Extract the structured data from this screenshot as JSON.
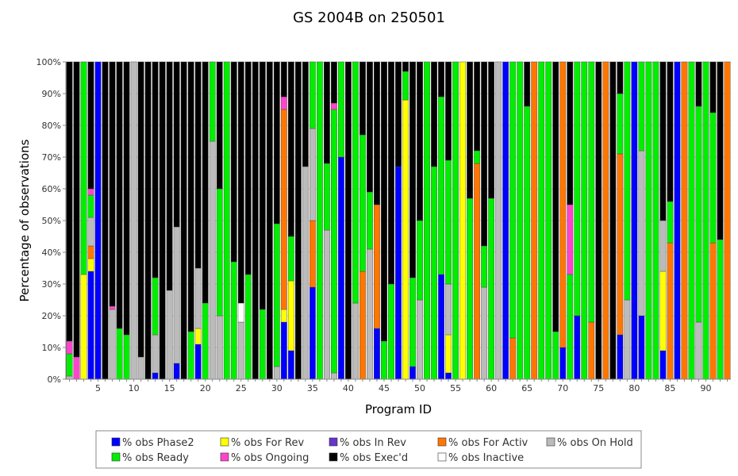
{
  "chart_data": {
    "type": "bar",
    "stacked": true,
    "title": "GS 2004B on 250501",
    "xlabel": "Program ID",
    "ylabel": "Percentage of observations",
    "ylim": [
      0,
      100
    ],
    "y_ticks": [
      "0%",
      "10%",
      "20%",
      "30%",
      "40%",
      "50%",
      "60%",
      "70%",
      "80%",
      "90%",
      "100%"
    ],
    "x_ticks": [
      5,
      10,
      15,
      20,
      25,
      30,
      35,
      40,
      45,
      50,
      55,
      60,
      65,
      70,
      75,
      80,
      85,
      90
    ],
    "program_count": 93,
    "legend_position": "bottom",
    "series": [
      {
        "key": "p2",
        "name": "% obs Phase2",
        "color": "#0000ff"
      },
      {
        "key": "fr",
        "name": "% obs For Rev",
        "color": "#ffff00"
      },
      {
        "key": "ir",
        "name": "% obs In Rev",
        "color": "#6633cc"
      },
      {
        "key": "fa",
        "name": "% obs For Activ",
        "color": "#ff7700"
      },
      {
        "key": "oh",
        "name": "% obs On Hold",
        "color": "#bbbbbb"
      },
      {
        "key": "rd",
        "name": "% obs Ready",
        "color": "#00ee00"
      },
      {
        "key": "og",
        "name": "% obs Ongoing",
        "color": "#ff44cc"
      },
      {
        "key": "ex",
        "name": "% obs Exec'd",
        "color": "#000000"
      },
      {
        "key": "in",
        "name": "% obs Inactive",
        "color": "#ffffff"
      }
    ],
    "stack_order": [
      "p2",
      "fr",
      "ir",
      "fa",
      "oh",
      "in",
      "rd",
      "og",
      "ex"
    ],
    "programs": [
      {
        "id": 1,
        "oh": 1,
        "rd": 7,
        "og": 4
      },
      {
        "id": 2,
        "og": 7
      },
      {
        "id": 3,
        "fr": 33,
        "rd": 67
      },
      {
        "id": 4,
        "p2": 34,
        "fr": 4,
        "fa": 4,
        "oh": 9,
        "rd": 7,
        "og": 2
      },
      {
        "id": 5,
        "p2": 100
      },
      {
        "id": 6
      },
      {
        "id": 7,
        "oh": 22,
        "og": 1
      },
      {
        "id": 8,
        "rd": 16
      },
      {
        "id": 9,
        "rd": 14
      },
      {
        "id": 10,
        "oh": 100
      },
      {
        "id": 11,
        "oh": 7
      },
      {
        "id": 12
      },
      {
        "id": 13,
        "p2": 2,
        "oh": 12,
        "rd": 18
      },
      {
        "id": 14
      },
      {
        "id": 15,
        "oh": 28
      },
      {
        "id": 16,
        "p2": 5,
        "oh": 43
      },
      {
        "id": 17
      },
      {
        "id": 18,
        "rd": 15
      },
      {
        "id": 19,
        "p2": 11,
        "fr": 5,
        "oh": 19
      },
      {
        "id": 20,
        "rd": 24
      },
      {
        "id": 21,
        "oh": 75,
        "rd": 25
      },
      {
        "id": 22,
        "oh": 20,
        "rd": 40
      },
      {
        "id": 23,
        "rd": 100
      },
      {
        "id": 24,
        "rd": 37
      },
      {
        "id": 25,
        "oh": 18,
        "in": 6
      },
      {
        "id": 26,
        "rd": 33
      },
      {
        "id": 27
      },
      {
        "id": 28,
        "rd": 22
      },
      {
        "id": 29
      },
      {
        "id": 30,
        "oh": 4,
        "rd": 45
      },
      {
        "id": 31,
        "p2": 18,
        "fr": 4,
        "fa": 63,
        "og": 4
      },
      {
        "id": 32,
        "p2": 9,
        "fr": 22,
        "rd": 14
      },
      {
        "id": 33
      },
      {
        "id": 34,
        "oh": 67
      },
      {
        "id": 35,
        "p2": 29,
        "fa": 21,
        "oh": 29,
        "rd": 21
      },
      {
        "id": 36,
        "rd": 100
      },
      {
        "id": 37,
        "oh": 47,
        "rd": 21
      },
      {
        "id": 38,
        "oh": 2,
        "rd": 83,
        "og": 2
      },
      {
        "id": 39,
        "p2": 70,
        "rd": 30
      },
      {
        "id": 40
      },
      {
        "id": 41,
        "oh": 24,
        "rd": 76
      },
      {
        "id": 42,
        "fa": 34,
        "rd": 43
      },
      {
        "id": 43,
        "oh": 41,
        "rd": 18
      },
      {
        "id": 44,
        "p2": 16,
        "fa": 39
      },
      {
        "id": 45,
        "rd": 12
      },
      {
        "id": 46,
        "rd": 30
      },
      {
        "id": 47,
        "p2": 67
      },
      {
        "id": 48,
        "fr": 88,
        "rd": 9
      },
      {
        "id": 49,
        "p2": 4,
        "rd": 28
      },
      {
        "id": 50,
        "oh": 25,
        "rd": 25
      },
      {
        "id": 51,
        "rd": 100
      },
      {
        "id": 52,
        "rd": 67
      },
      {
        "id": 53,
        "p2": 33,
        "rd": 56
      },
      {
        "id": 54,
        "p2": 2,
        "fr": 12,
        "oh": 16,
        "rd": 39
      },
      {
        "id": 55,
        "rd": 100
      },
      {
        "id": 56,
        "fr": 100
      },
      {
        "id": 57,
        "rd": 57
      },
      {
        "id": 58,
        "fa": 68,
        "rd": 4
      },
      {
        "id": 59,
        "oh": 29,
        "rd": 13
      },
      {
        "id": 60,
        "rd": 57
      },
      {
        "id": 61,
        "oh": 100
      },
      {
        "id": 62,
        "p2": 100
      },
      {
        "id": 63,
        "fa": 13,
        "rd": 87
      },
      {
        "id": 64,
        "rd": 100
      },
      {
        "id": 65,
        "rd": 86
      },
      {
        "id": 66,
        "fa": 100
      },
      {
        "id": 67,
        "rd": 100
      },
      {
        "id": 68,
        "rd": 100
      },
      {
        "id": 69,
        "rd": 15
      },
      {
        "id": 70,
        "p2": 10,
        "fa": 90
      },
      {
        "id": 71,
        "rd": 33,
        "og": 22
      },
      {
        "id": 72,
        "p2": 20,
        "rd": 80
      },
      {
        "id": 73,
        "rd": 100
      },
      {
        "id": 74,
        "fa": 18,
        "rd": 82
      },
      {
        "id": 75
      },
      {
        "id": 76,
        "fa": 100
      },
      {
        "id": 77
      },
      {
        "id": 78,
        "p2": 14,
        "fa": 57,
        "rd": 19
      },
      {
        "id": 79,
        "oh": 25,
        "rd": 75
      },
      {
        "id": 80,
        "p2": 100
      },
      {
        "id": 81,
        "p2": 20,
        "oh": 52,
        "rd": 28
      },
      {
        "id": 82,
        "rd": 100
      },
      {
        "id": 83,
        "rd": 100
      },
      {
        "id": 84,
        "p2": 9,
        "fr": 25,
        "oh": 16
      },
      {
        "id": 85,
        "fa": 43,
        "rd": 13
      },
      {
        "id": 86,
        "p2": 100
      },
      {
        "id": 87,
        "fa": 100
      },
      {
        "id": 88,
        "rd": 100
      },
      {
        "id": 89,
        "oh": 18,
        "rd": 68
      },
      {
        "id": 90,
        "rd": 100
      },
      {
        "id": 91,
        "fa": 43,
        "rd": 41
      },
      {
        "id": 92,
        "rd": 44
      },
      {
        "id": 93,
        "fa": 100
      }
    ]
  }
}
